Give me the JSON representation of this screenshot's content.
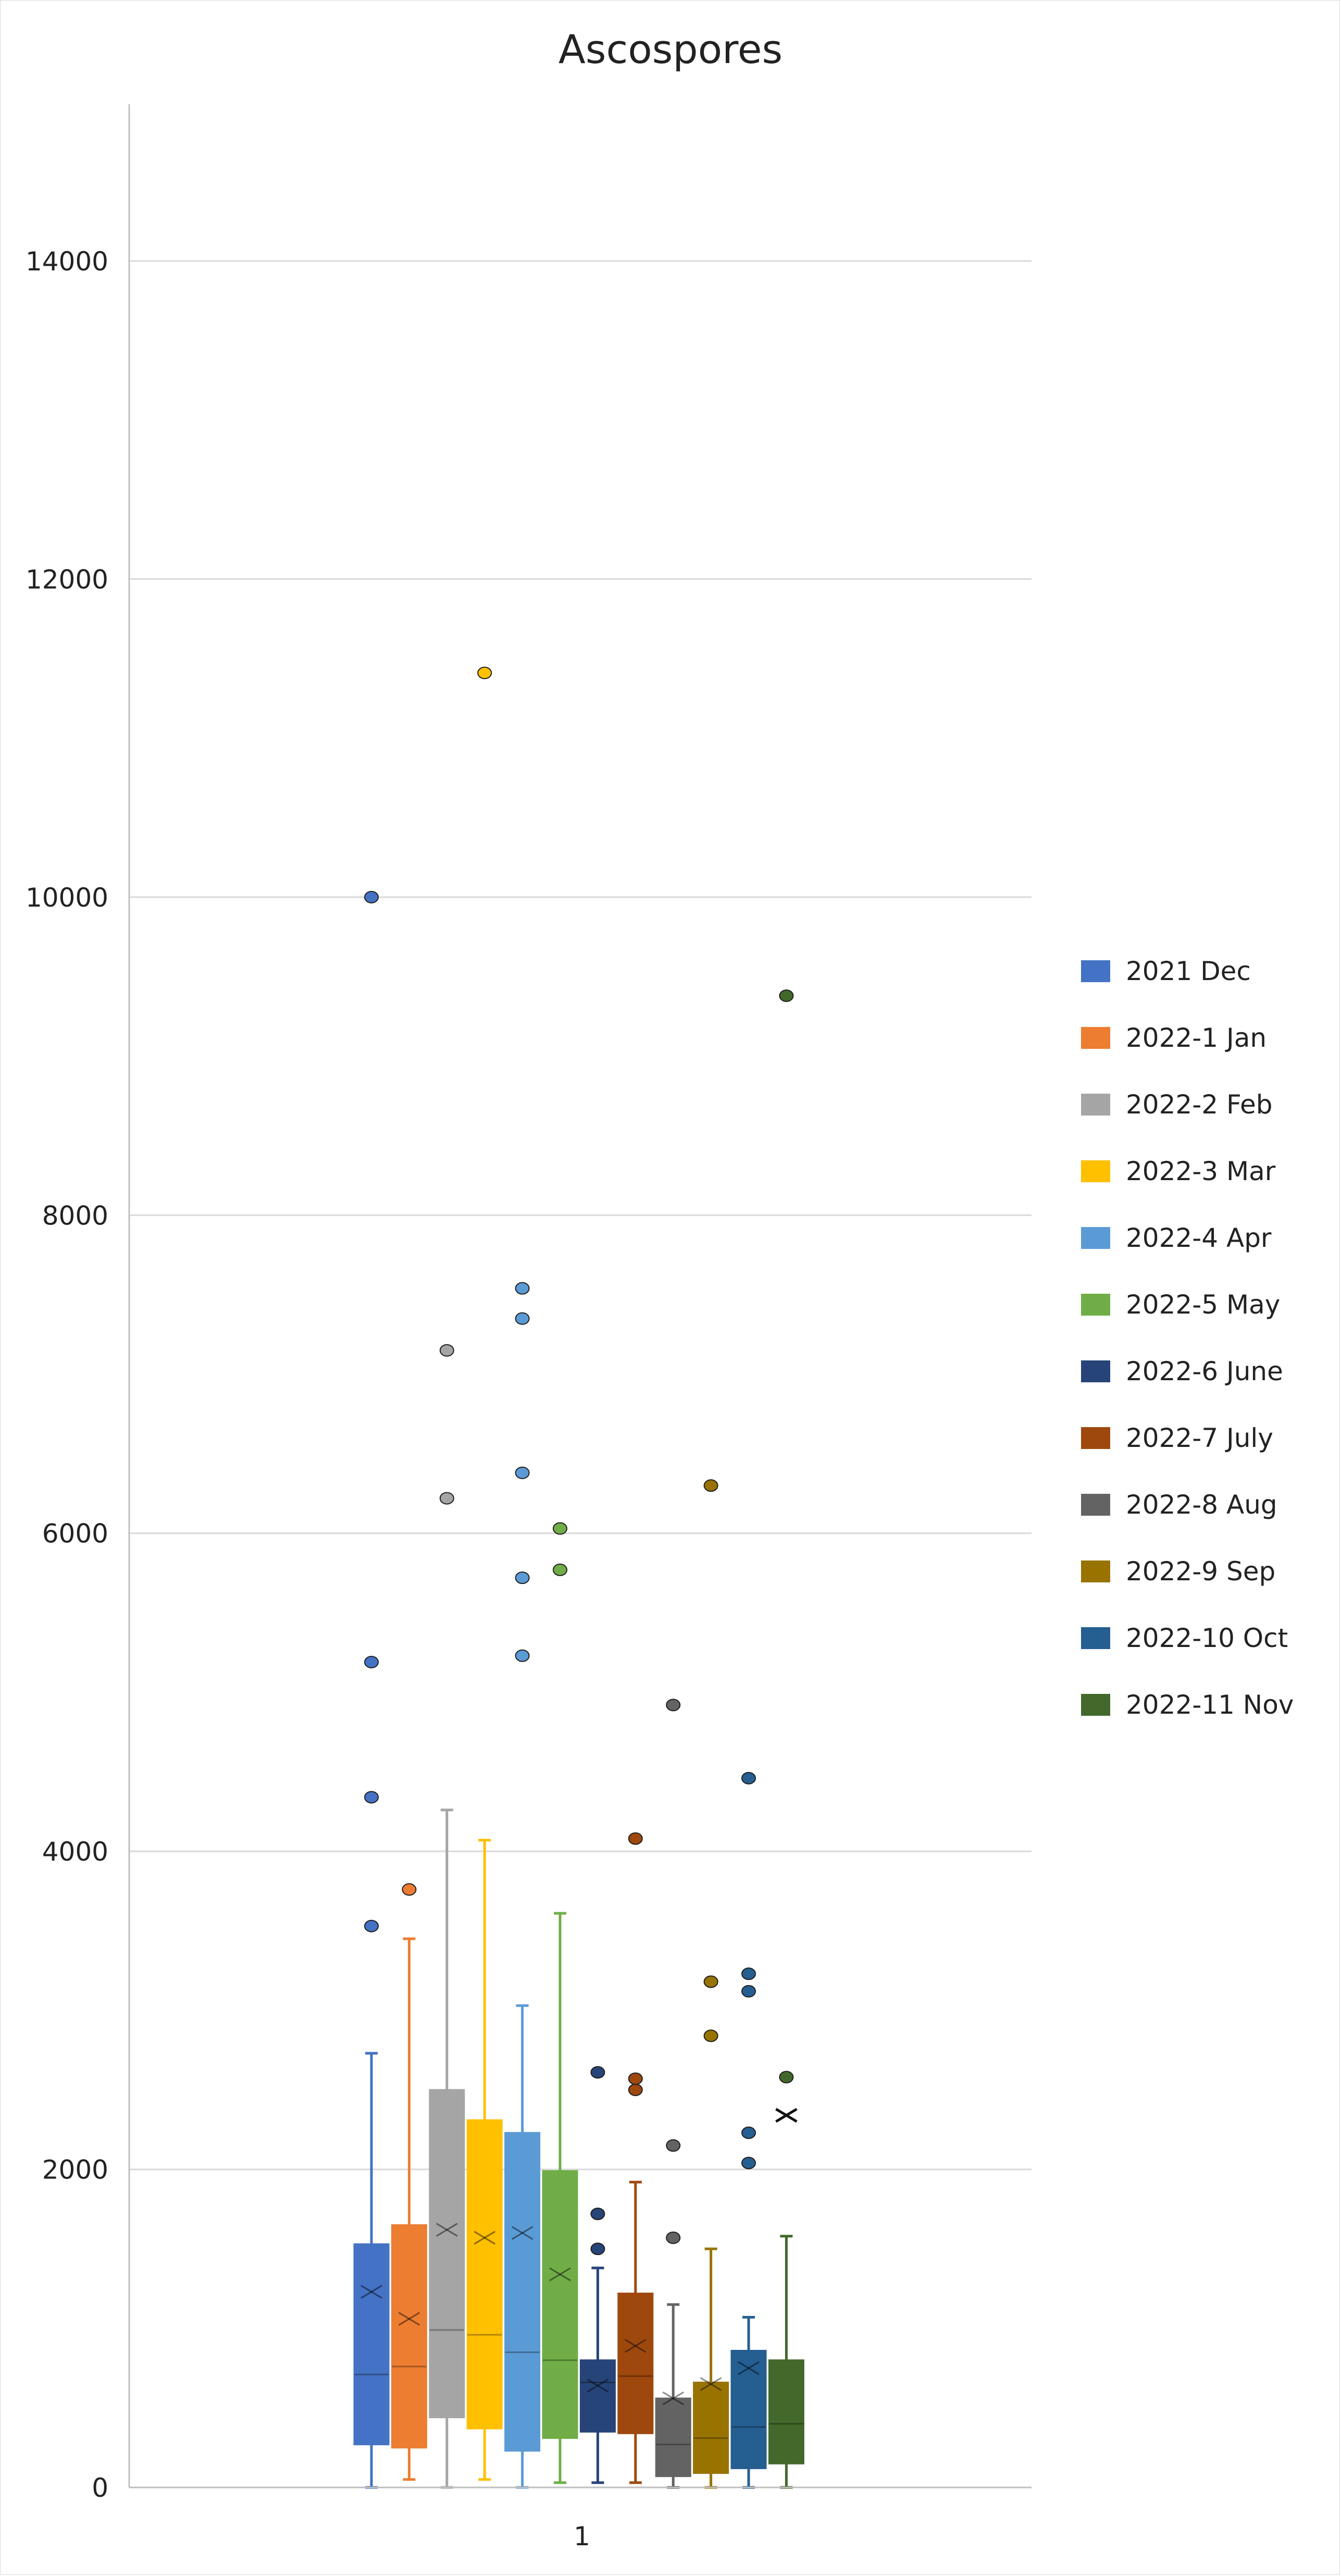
{
  "chart_data": {
    "type": "boxplot",
    "title": "Ascospores",
    "xlabel": "",
    "ylabel": "",
    "categories": [
      "1"
    ],
    "ylim": [
      0,
      15000
    ],
    "yticks": [
      0,
      2000,
      4000,
      6000,
      8000,
      10000,
      12000,
      14000
    ],
    "ytick_labels": [
      "0",
      "2000",
      "4000",
      "6000",
      "8000",
      "10000",
      "12000",
      "14000"
    ],
    "grid": true,
    "legend_position": "right",
    "series": [
      {
        "name": "2021 Dec",
        "color": "#4472C4",
        "min": 0,
        "q1": 270,
        "median": 710,
        "q3": 1530,
        "max": 2730,
        "mean": 1230,
        "outliers": [
          3530,
          4340,
          5190,
          10000
        ]
      },
      {
        "name": "2022-1 Jan",
        "color": "#ED7D31",
        "min": 50,
        "q1": 250,
        "median": 760,
        "q3": 1650,
        "max": 3450,
        "mean": 1060,
        "outliers": [
          3760
        ]
      },
      {
        "name": "2022-2 Feb",
        "color": "#A5A5A5",
        "min": 0,
        "q1": 440,
        "median": 990,
        "q3": 2500,
        "max": 4260,
        "mean": 1620,
        "outliers": [
          6220,
          7150
        ]
      },
      {
        "name": "2022-3 Mar",
        "color": "#FFC000",
        "min": 50,
        "q1": 370,
        "median": 960,
        "q3": 2310,
        "max": 4070,
        "mean": 1570,
        "outliers": [
          11410
        ]
      },
      {
        "name": "2022-4 Apr",
        "color": "#5B9BD5",
        "min": 0,
        "q1": 230,
        "median": 850,
        "q3": 2230,
        "max": 3030,
        "mean": 1600,
        "outliers": [
          5230,
          5720,
          6380,
          7350,
          7540
        ]
      },
      {
        "name": "2022-5 May",
        "color": "#70AD47",
        "min": 30,
        "q1": 310,
        "median": 800,
        "q3": 1990,
        "max": 3610,
        "mean": 1340,
        "outliers": [
          5770,
          6030
        ]
      },
      {
        "name": "2022-6 June",
        "color": "#264478",
        "min": 30,
        "q1": 350,
        "median": 660,
        "q3": 800,
        "max": 1380,
        "mean": 640,
        "outliers": [
          1500,
          1720,
          2610
        ]
      },
      {
        "name": "2022-7 July",
        "color": "#9E480E",
        "min": 30,
        "q1": 340,
        "median": 700,
        "q3": 1220,
        "max": 1920,
        "mean": 890,
        "outliers": [
          2500,
          2570,
          4080
        ]
      },
      {
        "name": "2022-8 Aug",
        "color": "#636363",
        "min": 0,
        "q1": 70,
        "median": 270,
        "q3": 560,
        "max": 1150,
        "mean": 560,
        "outliers": [
          1570,
          2150,
          4920
        ]
      },
      {
        "name": "2022-9 Sep",
        "color": "#997300",
        "min": 0,
        "q1": 90,
        "median": 310,
        "q3": 660,
        "max": 1500,
        "mean": 650,
        "outliers": [
          2840,
          3180,
          6300
        ]
      },
      {
        "name": "2022-10 Oct",
        "color": "#255E91",
        "min": 0,
        "q1": 120,
        "median": 380,
        "q3": 860,
        "max": 1070,
        "mean": 750,
        "outliers": [
          2040,
          2230,
          3120,
          3230,
          4460
        ]
      },
      {
        "name": "2022-11 Nov",
        "color": "#43682B",
        "min": 0,
        "q1": 150,
        "median": 400,
        "q3": 800,
        "max": 1580,
        "mean": 2340,
        "outliers": [
          2580,
          9380
        ]
      }
    ]
  }
}
